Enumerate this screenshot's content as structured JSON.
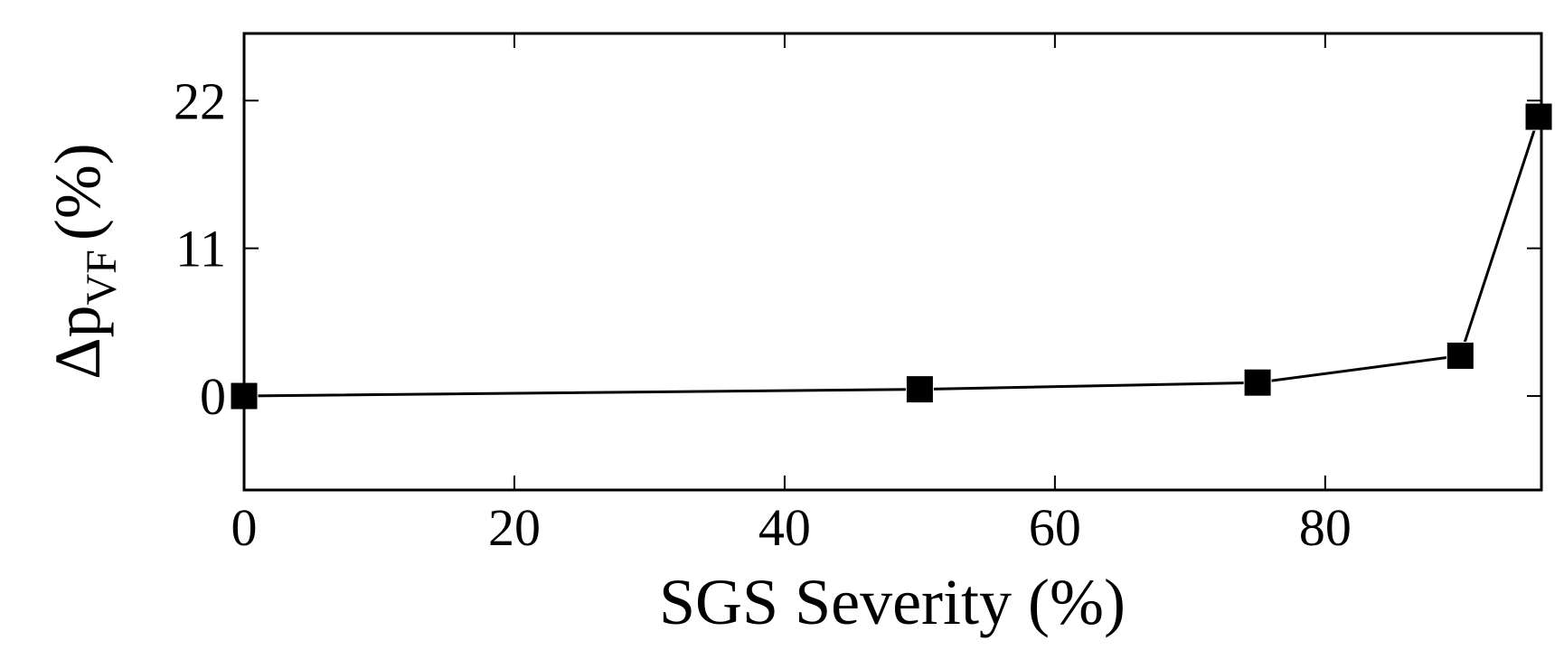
{
  "chart_data": {
    "type": "line",
    "title": "",
    "xlabel": "SGS Severity (%)",
    "ylabel": {
      "main": "Δp",
      "subscript": "VF",
      "unit": "(%)"
    },
    "xlim": [
      0,
      96
    ],
    "ylim": [
      -7,
      27
    ],
    "xticks": [
      0,
      20,
      40,
      60,
      80
    ],
    "yticks": [
      0,
      11,
      22
    ],
    "grid": false,
    "legend": "none",
    "marker": "square",
    "series": [
      {
        "x": [
          0,
          50,
          75,
          90,
          95.8
        ],
        "y": [
          0,
          0.5,
          1.0,
          3.0,
          20.8
        ],
        "color": "#000000"
      }
    ]
  }
}
